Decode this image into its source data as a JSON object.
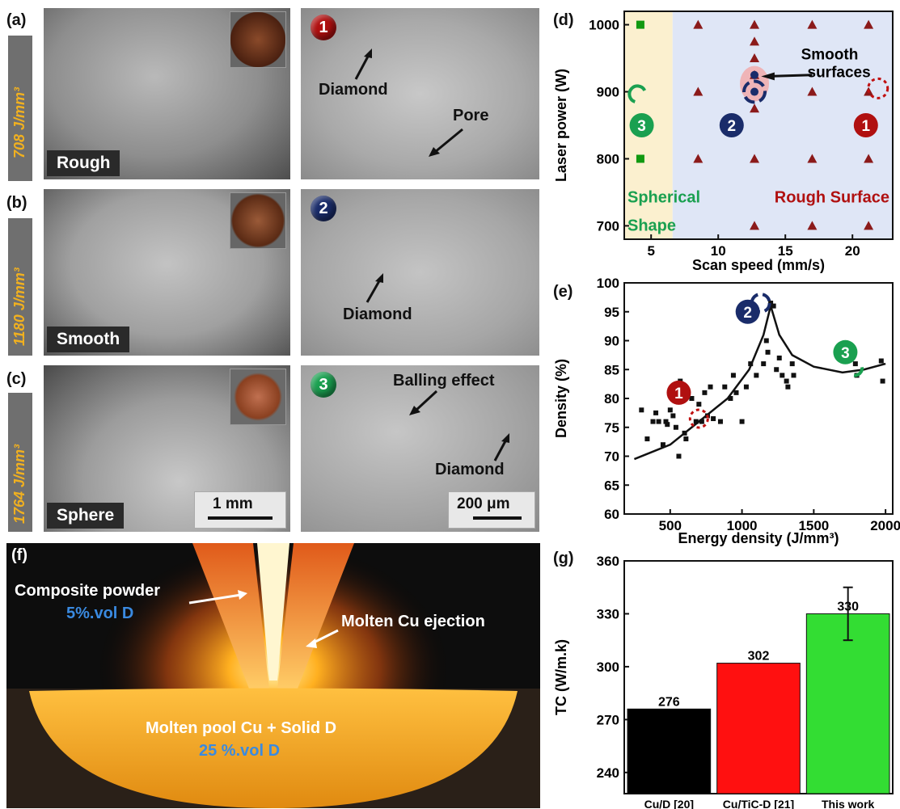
{
  "panels": {
    "a": {
      "label": "(a)",
      "energy": "708 J/mm³",
      "surface": "Rough",
      "badge": "1",
      "annotations": {
        "diamond": "Diamond",
        "pore": "Pore"
      }
    },
    "b": {
      "label": "(b)",
      "energy": "1180 J/mm³",
      "surface": "Smooth",
      "badge": "2",
      "annotations": {
        "diamond": "Diamond"
      }
    },
    "c": {
      "label": "(c)",
      "energy": "1764 J/mm³",
      "surface": "Sphere",
      "badge": "3",
      "annotations": {
        "balling": "Balling effect",
        "diamond": "Diamond"
      }
    },
    "scalebars": {
      "macro": "1 mm",
      "micro": "200 μm"
    },
    "d": {
      "label": "(d)",
      "annotations": {
        "smooth1": "Smooth",
        "smooth2": "surfaces",
        "spherical1": "Spherical",
        "spherical2": "Shape",
        "rough": "Rough Surface"
      }
    },
    "e": {
      "label": "(e)"
    },
    "f": {
      "label": "(f)",
      "powder": "Composite powder",
      "powder_pct": "5%.vol D",
      "ejection": "Molten Cu ejection",
      "pool": "Molten pool Cu + Solid D",
      "pool_pct": "25 %.vol D"
    },
    "g": {
      "label": "(g)"
    }
  },
  "colors": {
    "red": "#b01010",
    "blue": "#1a2c6a",
    "green": "#1aa050",
    "orange": "#f0b020",
    "bar_black": "#000000",
    "bar_red": "#ff1010",
    "bar_green": "#33dd33",
    "pct_blue": "#3a8ae0"
  },
  "chart_data": [
    {
      "id": "d",
      "type": "scatter",
      "xlabel": "Scan speed (mm/s)",
      "ylabel": "Laser power (W)",
      "xlim": [
        3,
        23
      ],
      "ylim": [
        680,
        1020
      ],
      "xticks": [
        5,
        10,
        15,
        20
      ],
      "yticks": [
        700,
        800,
        900,
        1000
      ],
      "series": [
        {
          "marker": "square",
          "color": "#119911",
          "points": [
            [
              4.2,
              1000
            ],
            [
              4.2,
              800
            ]
          ]
        },
        {
          "marker": "triangle",
          "color": "#8b1a1a",
          "points": [
            [
              8.5,
              1000
            ],
            [
              12.7,
              1000
            ],
            [
              17,
              1000
            ],
            [
              21.2,
              1000
            ],
            [
              12.7,
              975
            ],
            [
              12.7,
              950
            ],
            [
              12.7,
              925
            ],
            [
              12.7,
              875
            ],
            [
              8.5,
              900
            ],
            [
              17,
              900
            ],
            [
              21.2,
              900
            ],
            [
              8.5,
              800
            ],
            [
              12.7,
              800
            ],
            [
              17,
              800
            ],
            [
              21.2,
              800
            ],
            [
              12.7,
              700
            ],
            [
              17,
              700
            ],
            [
              21.2,
              700
            ]
          ]
        },
        {
          "marker": "circle",
          "color": "#1a2c6a",
          "points": [
            [
              12.7,
              900
            ],
            [
              12.7,
              925
            ]
          ]
        }
      ]
    },
    {
      "id": "e",
      "type": "scatter",
      "xlabel": "Energy density (J/mm³)",
      "ylabel": "Density (%)",
      "xlim": [
        180,
        2050
      ],
      "ylim": [
        60,
        100
      ],
      "xticks": [
        500,
        1000,
        1500,
        2000
      ],
      "yticks": [
        60,
        65,
        70,
        75,
        80,
        85,
        90,
        95,
        100
      ],
      "points": [
        [
          300,
          78
        ],
        [
          340,
          73
        ],
        [
          380,
          76
        ],
        [
          400,
          77.5
        ],
        [
          420,
          76
        ],
        [
          450,
          72
        ],
        [
          470,
          76
        ],
        [
          480,
          75.5
        ],
        [
          500,
          78
        ],
        [
          520,
          77
        ],
        [
          540,
          75
        ],
        [
          560,
          70
        ],
        [
          570,
          83
        ],
        [
          600,
          74
        ],
        [
          610,
          73
        ],
        [
          650,
          80
        ],
        [
          680,
          76
        ],
        [
          700,
          79
        ],
        [
          720,
          76
        ],
        [
          740,
          81
        ],
        [
          760,
          77
        ],
        [
          780,
          82
        ],
        [
          800,
          76.5
        ],
        [
          850,
          76
        ],
        [
          880,
          82
        ],
        [
          920,
          80
        ],
        [
          940,
          84
        ],
        [
          960,
          81
        ],
        [
          1000,
          76
        ],
        [
          1030,
          82
        ],
        [
          1060,
          86
        ],
        [
          1100,
          84
        ],
        [
          1150,
          86
        ],
        [
          1170,
          90
        ],
        [
          1180,
          88
        ],
        [
          1200,
          96.5
        ],
        [
          1220,
          96
        ],
        [
          1240,
          85
        ],
        [
          1260,
          87
        ],
        [
          1280,
          84
        ],
        [
          1310,
          83
        ],
        [
          1320,
          82
        ],
        [
          1350,
          86
        ],
        [
          1360,
          84
        ],
        [
          1740,
          89
        ],
        [
          1760,
          87
        ],
        [
          1790,
          86
        ],
        [
          1800,
          84
        ],
        [
          1970,
          86.5
        ],
        [
          1980,
          83
        ]
      ],
      "fit": [
        [
          250,
          69.5
        ],
        [
          500,
          72
        ],
        [
          700,
          76
        ],
        [
          900,
          80
        ],
        [
          1050,
          85
        ],
        [
          1150,
          91
        ],
        [
          1200,
          96
        ],
        [
          1260,
          91
        ],
        [
          1350,
          87.5
        ],
        [
          1500,
          85.5
        ],
        [
          1700,
          84.5
        ],
        [
          1850,
          85
        ],
        [
          2000,
          86
        ]
      ]
    },
    {
      "id": "g",
      "type": "bar",
      "ylabel": "TC (W/m.k)",
      "ylim": [
        228,
        360
      ],
      "yticks": [
        240,
        270,
        300,
        330,
        360
      ],
      "categories": [
        "Cu/D [20]",
        "Cu/TiC-D [21]",
        "This work"
      ],
      "values": [
        276,
        302,
        330
      ],
      "error": [
        null,
        null,
        15
      ]
    }
  ]
}
